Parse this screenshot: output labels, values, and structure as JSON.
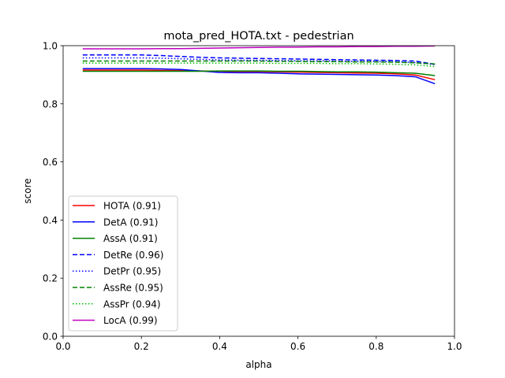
{
  "chart_data": {
    "type": "line",
    "title": "mota_pred_HOTA.txt - pedestrian",
    "xlabel": "alpha",
    "ylabel": "score",
    "xlim": [
      0,
      1
    ],
    "ylim": [
      0,
      1
    ],
    "xticks": [
      "0.0",
      "0.2",
      "0.4",
      "0.6",
      "0.8",
      "1.0"
    ],
    "yticks": [
      "0.0",
      "0.2",
      "0.4",
      "0.6",
      "0.8",
      "1.0"
    ],
    "grid": false,
    "legend_position": "lower-left",
    "x": [
      0.05,
      0.1,
      0.15,
      0.2,
      0.25,
      0.3,
      0.35,
      0.4,
      0.45,
      0.5,
      0.55,
      0.6,
      0.65,
      0.7,
      0.75,
      0.8,
      0.85,
      0.9,
      0.95
    ],
    "series": [
      {
        "name": "HOTA (0.91)",
        "color": "#ff0000",
        "style": "solid",
        "values": [
          0.916,
          0.916,
          0.916,
          0.916,
          0.915,
          0.914,
          0.913,
          0.912,
          0.911,
          0.911,
          0.91,
          0.909,
          0.908,
          0.907,
          0.906,
          0.905,
          0.903,
          0.899,
          0.883
        ]
      },
      {
        "name": "DetA (0.91)",
        "color": "#0000ff",
        "style": "solid",
        "values": [
          0.921,
          0.921,
          0.921,
          0.921,
          0.92,
          0.918,
          0.913,
          0.908,
          0.907,
          0.907,
          0.905,
          0.903,
          0.902,
          0.901,
          0.9,
          0.899,
          0.897,
          0.893,
          0.869
        ]
      },
      {
        "name": "AssA (0.91)",
        "color": "#008000",
        "style": "solid",
        "values": [
          0.912,
          0.912,
          0.912,
          0.912,
          0.912,
          0.912,
          0.912,
          0.913,
          0.913,
          0.913,
          0.912,
          0.912,
          0.911,
          0.91,
          0.91,
          0.909,
          0.907,
          0.905,
          0.897
        ]
      },
      {
        "name": "DetRe (0.96)",
        "color": "#0000ff",
        "style": "dashed",
        "values": [
          0.968,
          0.968,
          0.968,
          0.968,
          0.966,
          0.963,
          0.96,
          0.958,
          0.957,
          0.956,
          0.955,
          0.954,
          0.953,
          0.952,
          0.951,
          0.95,
          0.949,
          0.947,
          0.936
        ]
      },
      {
        "name": "DetPr (0.95)",
        "color": "#0000ff",
        "style": "dotted",
        "values": [
          0.958,
          0.958,
          0.958,
          0.958,
          0.957,
          0.955,
          0.953,
          0.951,
          0.95,
          0.95,
          0.949,
          0.948,
          0.948,
          0.947,
          0.946,
          0.946,
          0.945,
          0.942,
          0.935
        ]
      },
      {
        "name": "AssRe (0.95)",
        "color": "#008000",
        "style": "dashed",
        "values": [
          0.947,
          0.947,
          0.947,
          0.947,
          0.947,
          0.947,
          0.947,
          0.947,
          0.947,
          0.947,
          0.946,
          0.946,
          0.945,
          0.945,
          0.944,
          0.944,
          0.943,
          0.941,
          0.937
        ]
      },
      {
        "name": "AssPr (0.94)",
        "color": "#00c000",
        "style": "dotted",
        "values": [
          0.94,
          0.94,
          0.94,
          0.94,
          0.94,
          0.94,
          0.94,
          0.94,
          0.94,
          0.94,
          0.939,
          0.939,
          0.939,
          0.938,
          0.938,
          0.937,
          0.936,
          0.934,
          0.928
        ]
      },
      {
        "name": "LocA (0.99)",
        "color": "#c000c0",
        "style": "solid",
        "values": [
          0.989,
          0.989,
          0.989,
          0.989,
          0.99,
          0.99,
          0.991,
          0.992,
          0.993,
          0.994,
          0.995,
          0.995,
          0.996,
          0.996,
          0.997,
          0.997,
          0.998,
          0.998,
          0.999
        ]
      }
    ]
  }
}
